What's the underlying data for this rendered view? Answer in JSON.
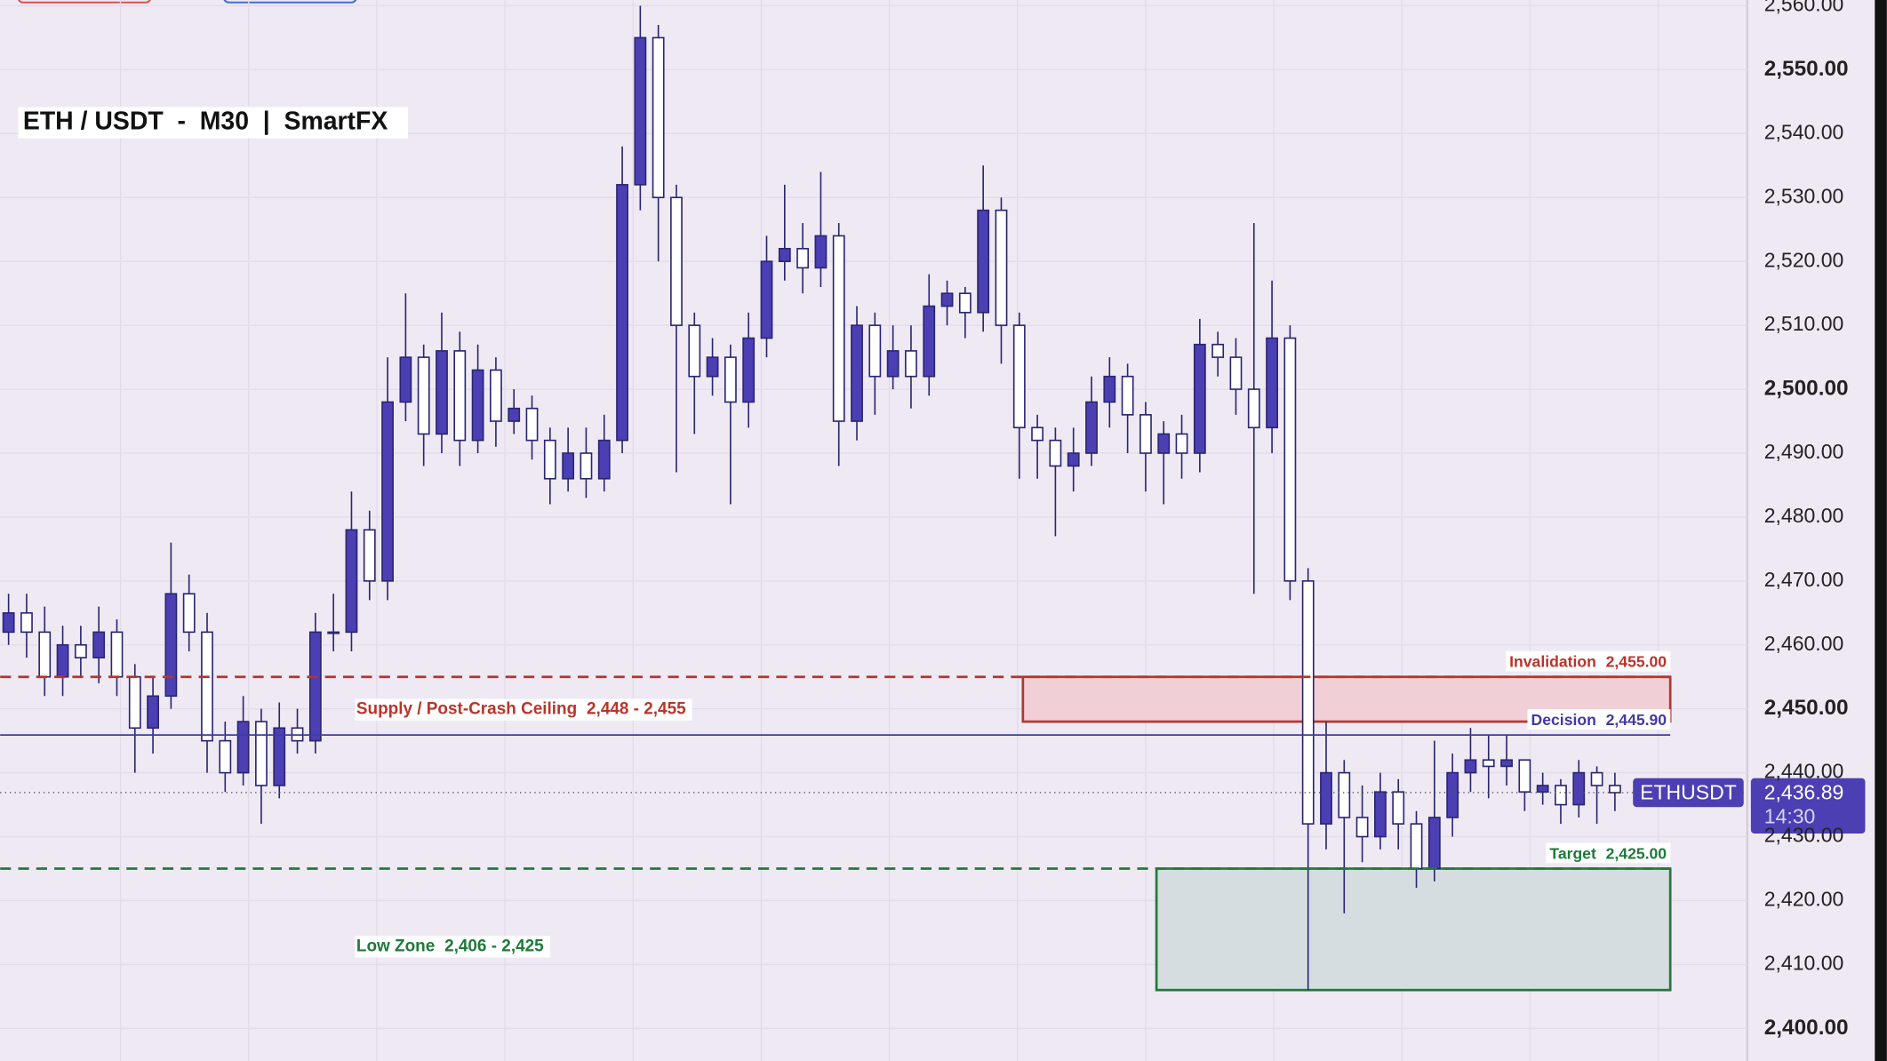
{
  "chart_data": {
    "type": "candlestick",
    "title": "ETH / USDT  -  M30  |  SmartFX",
    "symbol": "ETHUSDT",
    "last": 2436.89,
    "last_label": "2,436.89",
    "countdown": "14:30",
    "up_color": "#4b3fb3",
    "down_color": "#ffffff",
    "ylim": [
      2394.9,
      2560.9
    ],
    "yticks": [
      {
        "value": 2400,
        "label": "2,400.00"
      },
      {
        "value": 2410,
        "label": "2,410.00"
      },
      {
        "value": 2420,
        "label": "2,420.00"
      },
      {
        "value": 2430,
        "label": "2,430.00"
      },
      {
        "value": 2440,
        "label": "2,440.00"
      },
      {
        "value": 2450,
        "label": "2,450.00"
      },
      {
        "value": 2460,
        "label": "2,460.00"
      },
      {
        "value": 2470,
        "label": "2,470.00"
      },
      {
        "value": 2480,
        "label": "2,480.00"
      },
      {
        "value": 2490,
        "label": "2,490.00"
      },
      {
        "value": 2500,
        "label": "2,500.00"
      },
      {
        "value": 2510,
        "label": "2,510.00"
      },
      {
        "value": 2520,
        "label": "2,520.00"
      },
      {
        "value": 2530,
        "label": "2,530.00"
      },
      {
        "value": 2540,
        "label": "2,540.00"
      },
      {
        "value": 2550,
        "label": "2,550.00"
      },
      {
        "value": 2560,
        "label": "2,560.00"
      }
    ],
    "grid": true,
    "open": [
      2462,
      2465,
      2462,
      2455,
      2460,
      2458,
      2462,
      2455,
      2447,
      2452,
      2468,
      2462,
      2445,
      2440,
      2448,
      2438,
      2447,
      2445,
      2462,
      2462,
      2478,
      2470,
      2498,
      2505,
      2493,
      2506,
      2492,
      2503,
      2495,
      2497,
      2492,
      2486,
      2490,
      2486,
      2492,
      2532,
      2555,
      2530,
      2510,
      2502,
      2505,
      2498,
      2508,
      2520,
      2522,
      2519,
      2524,
      2495,
      2510,
      2502,
      2506,
      2502,
      2513,
      2515,
      2512,
      2528,
      2510,
      2494,
      2492,
      2488,
      2490,
      2498,
      2502,
      2496,
      2490,
      2493,
      2490,
      2507,
      2505,
      2500,
      2494,
      2508,
      2470,
      2432,
      2440,
      2433,
      2430,
      2437,
      2432,
      2425,
      2433,
      2440,
      2442,
      2441,
      2442,
      2437,
      2438,
      2435,
      2440,
      2438
    ],
    "high": [
      2468,
      2468,
      2466,
      2463,
      2463,
      2466,
      2464,
      2457,
      2455,
      2476,
      2471,
      2465,
      2448,
      2452,
      2450,
      2451,
      2450,
      2465,
      2468,
      2484,
      2481,
      2505,
      2515,
      2507,
      2512,
      2509,
      2507,
      2505,
      2500,
      2499,
      2494,
      2494,
      2494,
      2496,
      2538,
      2560,
      2557,
      2532,
      2512,
      2508,
      2507,
      2512,
      2524,
      2532,
      2526,
      2534,
      2526,
      2513,
      2512,
      2510,
      2510,
      2518,
      2517,
      2516,
      2535,
      2530,
      2512,
      2496,
      2494,
      2494,
      2502,
      2505,
      2504,
      2498,
      2495,
      2496,
      2511,
      2509,
      2508,
      2526,
      2517,
      2510,
      2472,
      2448,
      2442,
      2438,
      2440,
      2439,
      2434,
      2445,
      2443,
      2447,
      2446,
      2446,
      2442,
      2440,
      2439,
      2442,
      2441,
      2440
    ],
    "low": [
      2460,
      2458,
      2452,
      2452,
      2455,
      2454,
      2452,
      2440,
      2443,
      2450,
      2459,
      2440,
      2437,
      2438,
      2432,
      2436,
      2443,
      2443,
      2459,
      2459,
      2467,
      2467,
      2495,
      2488,
      2490,
      2488,
      2490,
      2491,
      2493,
      2489,
      2482,
      2484,
      2483,
      2484,
      2490,
      2528,
      2520,
      2487,
      2493,
      2499,
      2482,
      2494,
      2505,
      2517,
      2515,
      2516,
      2488,
      2492,
      2496,
      2500,
      2497,
      2499,
      2510,
      2508,
      2509,
      2504,
      2486,
      2486,
      2477,
      2484,
      2488,
      2494,
      2490,
      2484,
      2482,
      2486,
      2487,
      2502,
      2496,
      2468,
      2490,
      2467,
      2406,
      2428,
      2418,
      2426,
      2428,
      2428,
      2422,
      2423,
      2430,
      2437,
      2436,
      2438,
      2434,
      2435,
      2432,
      2433,
      2432,
      2434
    ],
    "close": [
      2465,
      2462,
      2455,
      2460,
      2458,
      2462,
      2455,
      2447,
      2452,
      2468,
      2462,
      2445,
      2440,
      2448,
      2438,
      2447,
      2445,
      2462,
      2462,
      2478,
      2470,
      2498,
      2505,
      2493,
      2506,
      2492,
      2503,
      2495,
      2497,
      2492,
      2486,
      2490,
      2486,
      2492,
      2532,
      2555,
      2530,
      2510,
      2502,
      2505,
      2498,
      2508,
      2520,
      2522,
      2519,
      2524,
      2495,
      2510,
      2502,
      2506,
      2502,
      2513,
      2515,
      2512,
      2528,
      2510,
      2494,
      2492,
      2488,
      2490,
      2498,
      2502,
      2496,
      2490,
      2493,
      2490,
      2507,
      2505,
      2500,
      2494,
      2508,
      2470,
      2432,
      2440,
      2433,
      2430,
      2437,
      2432,
      2425,
      2433,
      2440,
      2442,
      2441,
      2442,
      2437,
      2438,
      2435,
      2440,
      2438,
      2436.89
    ],
    "levels": [
      {
        "name": "Invalidation",
        "value": 2455,
        "value_label": "2,455.00",
        "color": "#b8352c",
        "style": "dashed"
      },
      {
        "name": "Decision",
        "value": 2445.9,
        "value_label": "2,445.90",
        "color": "#3f3aa8",
        "style": "solid"
      },
      {
        "name": "Target",
        "value": 2425,
        "value_label": "2,425.00",
        "color": "#1f7a3a",
        "style": "dashed"
      }
    ],
    "zones": [
      {
        "label": "Supply / Post-Crash Ceiling",
        "range_label": "2,448 - 2,455",
        "low": 2448,
        "high": 2455,
        "color": "#b8352c",
        "fill": "#f0d0d6"
      },
      {
        "label": "Low Zone",
        "range_label": "2,406 - 2,425",
        "low": 2406,
        "high": 2425,
        "color": "#1f7a3a",
        "fill": "#d6dde0"
      }
    ]
  }
}
